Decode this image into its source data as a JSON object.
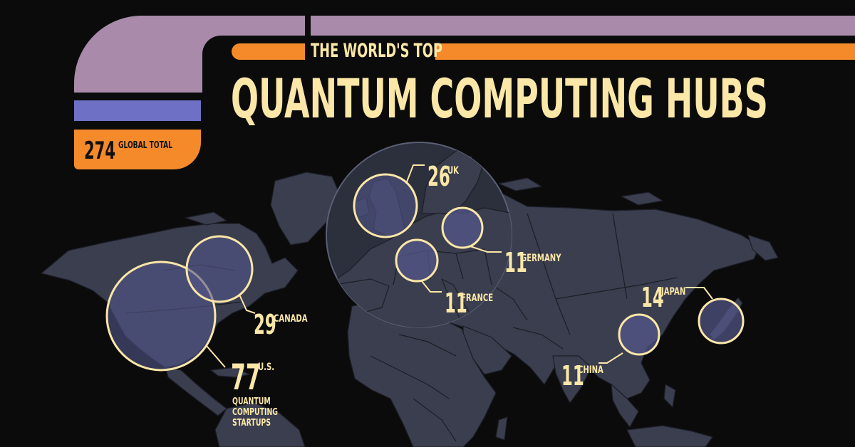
{
  "header": {
    "subtitle": "THE WORLD'S TOP",
    "title": "QUANTUM COMPUTING HUBS",
    "total_value": "274",
    "total_label": "GLOBAL TOTAL"
  },
  "colors": {
    "background": "#0b0b0c",
    "land": "#3a3e4e",
    "border": "#1c1e27",
    "mauve": "#a98aaa",
    "blue": "#6d70c4",
    "orange": "#f58a2a",
    "label": "#fbe7a7",
    "circle_fill": "#54578a"
  },
  "hubs": [
    {
      "id": "us",
      "name": "U.S.",
      "count": 77,
      "count_label": "77",
      "note": "QUANTUM COMPUTING STARTUPS"
    },
    {
      "id": "canada",
      "name": "CANADA",
      "count": 29,
      "count_label": "29"
    },
    {
      "id": "uk",
      "name": "UK",
      "count": 26,
      "count_label": "26"
    },
    {
      "id": "germany",
      "name": "GERMANY",
      "count": 11,
      "count_label": "11"
    },
    {
      "id": "france",
      "name": "FRANCE",
      "count": 11,
      "count_label": "11"
    },
    {
      "id": "japan",
      "name": "JAPAN",
      "count": 14,
      "count_label": "14"
    },
    {
      "id": "china",
      "name": "CHINA",
      "count": 11,
      "count_label": "11"
    }
  ]
}
